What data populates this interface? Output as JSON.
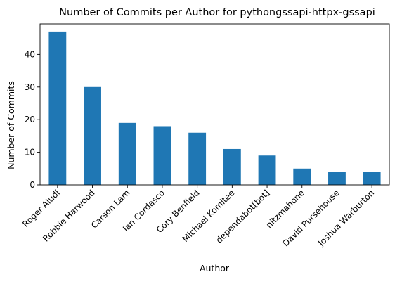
{
  "colors": {
    "bar": "#1f77b4",
    "axis": "#000000",
    "background": "#ffffff"
  },
  "chart_data": {
    "type": "bar",
    "title": "Number of Commits per Author for pythongssapi-httpx-gssapi",
    "xlabel": "Author",
    "ylabel": "Number of Commits",
    "categories": [
      "Roger Aiudi",
      "Robbie Harwood",
      "Carson Lam",
      "Ian Cordasco",
      "Cory Benfield",
      "Michael Komitee",
      "dependabot[bot]",
      "nitzmahone",
      "David Pursehouse",
      "Joshua Warburton"
    ],
    "values": [
      47,
      30,
      19,
      18,
      16,
      11,
      9,
      5,
      4,
      4
    ],
    "yticks": [
      0,
      10,
      20,
      30,
      40
    ],
    "ylim": [
      0,
      49.35
    ],
    "grid": false,
    "legend": false
  }
}
